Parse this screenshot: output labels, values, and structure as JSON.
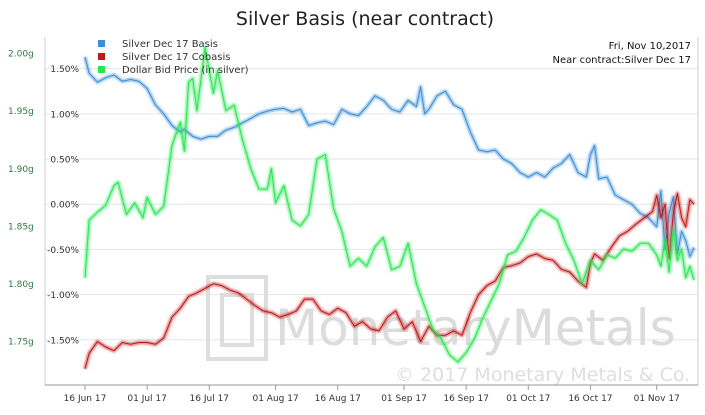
{
  "colors": {
    "basis": "#3c8fd6",
    "cobasis": "#c01818",
    "dollar": "#27e64e",
    "left_axis_text": "#2c7a3f",
    "grid": "#e6e6e6",
    "watermark": "#d9d9d9"
  },
  "info": {
    "date": "Fri, Nov 10,2017",
    "contract": "Near contract:Silver Dec 17"
  },
  "watermark": {
    "brand": "MonetaryMetals",
    "copyright": "© 2017 Monetary Metals & Co."
  },
  "chart_data": {
    "type": "line",
    "title": "Silver Basis (near contract)",
    "x_ticks": [
      "16 Jun 17",
      "01 Jul 17",
      "16 Jul 17",
      "01 Aug 17",
      "16 Aug 17",
      "01 Sep 17",
      "16 Sep 17",
      "01 Oct 17",
      "16 Oct 17",
      "01 Nov 17"
    ],
    "x_range": [
      "2017-06-16",
      "2017-11-10"
    ],
    "right_axis": {
      "ticks": [
        "1.50%",
        "1.00%",
        "0.50%",
        "0.00%",
        "-0.50%",
        "-1.00%",
        "-1.50%"
      ],
      "tick_values": [
        1.5,
        1.0,
        0.5,
        0.0,
        -0.5,
        -1.0,
        -1.5
      ],
      "range": [
        -2.0,
        1.85
      ],
      "unit": "%"
    },
    "left_axis": {
      "ticks": [
        "2.00g",
        "1.95g",
        "1.90g",
        "1.85g",
        "1.80g",
        "1.75g"
      ],
      "tick_values": [
        2.0,
        1.95,
        1.9,
        1.85,
        1.8,
        1.75
      ],
      "range": [
        1.712,
        2.014
      ],
      "unit": "g"
    },
    "legend_position": "top-left",
    "series": [
      {
        "name": "Silver Dec 17 Basis",
        "axis": "right",
        "color_key": "basis",
        "points": [
          [
            "2017-06-16",
            1.63
          ],
          [
            "2017-06-17",
            1.45
          ],
          [
            "2017-06-19",
            1.35
          ],
          [
            "2017-06-21",
            1.4
          ],
          [
            "2017-06-23",
            1.43
          ],
          [
            "2017-06-25",
            1.36
          ],
          [
            "2017-06-27",
            1.38
          ],
          [
            "2017-06-29",
            1.36
          ],
          [
            "2017-07-01",
            1.28
          ],
          [
            "2017-07-03",
            1.1
          ],
          [
            "2017-07-05",
            1.0
          ],
          [
            "2017-07-07",
            0.87
          ],
          [
            "2017-07-09",
            0.8
          ],
          [
            "2017-07-10",
            0.83
          ],
          [
            "2017-07-12",
            0.75
          ],
          [
            "2017-07-14",
            0.72
          ],
          [
            "2017-07-16",
            0.75
          ],
          [
            "2017-07-18",
            0.75
          ],
          [
            "2017-07-20",
            0.82
          ],
          [
            "2017-07-22",
            0.85
          ],
          [
            "2017-07-24",
            0.9
          ],
          [
            "2017-07-26",
            0.95
          ],
          [
            "2017-07-28",
            1.0
          ],
          [
            "2017-07-30",
            1.03
          ],
          [
            "2017-08-01",
            1.05
          ],
          [
            "2017-08-03",
            1.06
          ],
          [
            "2017-08-05",
            1.02
          ],
          [
            "2017-08-07",
            1.05
          ],
          [
            "2017-08-09",
            0.87
          ],
          [
            "2017-08-11",
            0.9
          ],
          [
            "2017-08-13",
            0.92
          ],
          [
            "2017-08-15",
            0.88
          ],
          [
            "2017-08-17",
            1.05
          ],
          [
            "2017-08-19",
            1.0
          ],
          [
            "2017-08-21",
            0.98
          ],
          [
            "2017-08-23",
            1.08
          ],
          [
            "2017-08-25",
            1.2
          ],
          [
            "2017-08-27",
            1.15
          ],
          [
            "2017-08-29",
            1.05
          ],
          [
            "2017-08-31",
            1.02
          ],
          [
            "2017-09-02",
            1.15
          ],
          [
            "2017-09-04",
            1.08
          ],
          [
            "2017-09-05",
            1.3
          ],
          [
            "2017-09-06",
            1.0
          ],
          [
            "2017-09-07",
            1.05
          ],
          [
            "2017-09-09",
            1.2
          ],
          [
            "2017-09-11",
            1.25
          ],
          [
            "2017-09-13",
            1.1
          ],
          [
            "2017-09-15",
            1.05
          ],
          [
            "2017-09-17",
            0.8
          ],
          [
            "2017-09-19",
            0.6
          ],
          [
            "2017-09-21",
            0.58
          ],
          [
            "2017-09-23",
            0.6
          ],
          [
            "2017-09-25",
            0.5
          ],
          [
            "2017-09-27",
            0.45
          ],
          [
            "2017-09-29",
            0.35
          ],
          [
            "2017-10-01",
            0.3
          ],
          [
            "2017-10-03",
            0.35
          ],
          [
            "2017-10-05",
            0.3
          ],
          [
            "2017-10-07",
            0.4
          ],
          [
            "2017-10-09",
            0.45
          ],
          [
            "2017-10-11",
            0.55
          ],
          [
            "2017-10-13",
            0.35
          ],
          [
            "2017-10-15",
            0.3
          ],
          [
            "2017-10-16",
            0.55
          ],
          [
            "2017-10-17",
            0.65
          ],
          [
            "2017-10-18",
            0.28
          ],
          [
            "2017-10-20",
            0.3
          ],
          [
            "2017-10-22",
            0.1
          ],
          [
            "2017-10-24",
            0.05
          ],
          [
            "2017-10-26",
            0.0
          ],
          [
            "2017-10-28",
            -0.1
          ],
          [
            "2017-10-30",
            -0.15
          ],
          [
            "2017-11-01",
            -0.25
          ],
          [
            "2017-11-02",
            0.15
          ],
          [
            "2017-11-03",
            -0.5
          ],
          [
            "2017-11-04",
            -0.1
          ],
          [
            "2017-11-05",
            0.08
          ],
          [
            "2017-11-06",
            -0.55
          ],
          [
            "2017-11-07",
            -0.3
          ],
          [
            "2017-11-08",
            -0.4
          ],
          [
            "2017-11-09",
            -0.58
          ],
          [
            "2017-11-10",
            -0.48
          ]
        ]
      },
      {
        "name": "Silver Dec 17 Cobasis",
        "axis": "right",
        "color_key": "cobasis",
        "points": [
          [
            "2017-06-16",
            -1.82
          ],
          [
            "2017-06-17",
            -1.65
          ],
          [
            "2017-06-19",
            -1.52
          ],
          [
            "2017-06-21",
            -1.58
          ],
          [
            "2017-06-23",
            -1.62
          ],
          [
            "2017-06-25",
            -1.53
          ],
          [
            "2017-06-27",
            -1.55
          ],
          [
            "2017-06-29",
            -1.53
          ],
          [
            "2017-07-01",
            -1.53
          ],
          [
            "2017-07-03",
            -1.55
          ],
          [
            "2017-07-05",
            -1.48
          ],
          [
            "2017-07-07",
            -1.25
          ],
          [
            "2017-07-09",
            -1.15
          ],
          [
            "2017-07-11",
            -1.02
          ],
          [
            "2017-07-13",
            -0.98
          ],
          [
            "2017-07-15",
            -0.93
          ],
          [
            "2017-07-17",
            -0.88
          ],
          [
            "2017-07-19",
            -0.9
          ],
          [
            "2017-07-21",
            -0.95
          ],
          [
            "2017-07-23",
            -0.98
          ],
          [
            "2017-07-25",
            -1.05
          ],
          [
            "2017-07-27",
            -1.12
          ],
          [
            "2017-07-29",
            -1.18
          ],
          [
            "2017-07-31",
            -1.2
          ],
          [
            "2017-08-02",
            -1.25
          ],
          [
            "2017-08-04",
            -1.22
          ],
          [
            "2017-08-06",
            -1.18
          ],
          [
            "2017-08-08",
            -1.05
          ],
          [
            "2017-08-10",
            -1.05
          ],
          [
            "2017-08-12",
            -1.18
          ],
          [
            "2017-08-14",
            -1.22
          ],
          [
            "2017-08-16",
            -1.15
          ],
          [
            "2017-08-18",
            -1.2
          ],
          [
            "2017-08-20",
            -1.35
          ],
          [
            "2017-08-22",
            -1.3
          ],
          [
            "2017-08-24",
            -1.38
          ],
          [
            "2017-08-26",
            -1.4
          ],
          [
            "2017-08-28",
            -1.25
          ],
          [
            "2017-08-30",
            -1.18
          ],
          [
            "2017-09-01",
            -1.38
          ],
          [
            "2017-09-03",
            -1.3
          ],
          [
            "2017-09-05",
            -1.52
          ],
          [
            "2017-09-07",
            -1.35
          ],
          [
            "2017-09-09",
            -1.45
          ],
          [
            "2017-09-11",
            -1.45
          ],
          [
            "2017-09-13",
            -1.4
          ],
          [
            "2017-09-15",
            -1.45
          ],
          [
            "2017-09-17",
            -1.2
          ],
          [
            "2017-09-19",
            -1.0
          ],
          [
            "2017-09-21",
            -0.9
          ],
          [
            "2017-09-23",
            -0.85
          ],
          [
            "2017-09-25",
            -0.7
          ],
          [
            "2017-09-27",
            -0.68
          ],
          [
            "2017-09-29",
            -0.65
          ],
          [
            "2017-10-01",
            -0.58
          ],
          [
            "2017-10-03",
            -0.55
          ],
          [
            "2017-10-05",
            -0.6
          ],
          [
            "2017-10-07",
            -0.62
          ],
          [
            "2017-10-09",
            -0.72
          ],
          [
            "2017-10-11",
            -0.75
          ],
          [
            "2017-10-13",
            -0.85
          ],
          [
            "2017-10-15",
            -0.92
          ],
          [
            "2017-10-16",
            -0.65
          ],
          [
            "2017-10-17",
            -0.55
          ],
          [
            "2017-10-19",
            -0.62
          ],
          [
            "2017-10-21",
            -0.48
          ],
          [
            "2017-10-23",
            -0.35
          ],
          [
            "2017-10-25",
            -0.3
          ],
          [
            "2017-10-27",
            -0.22
          ],
          [
            "2017-10-29",
            -0.15
          ],
          [
            "2017-10-31",
            -0.08
          ],
          [
            "2017-11-01",
            0.1
          ],
          [
            "2017-11-02",
            -0.15
          ],
          [
            "2017-11-03",
            0.0
          ],
          [
            "2017-11-04",
            -0.6
          ],
          [
            "2017-11-05",
            -0.1
          ],
          [
            "2017-11-06",
            0.12
          ],
          [
            "2017-11-07",
            -0.15
          ],
          [
            "2017-11-08",
            -0.25
          ],
          [
            "2017-11-09",
            0.05
          ],
          [
            "2017-11-10",
            0.0
          ]
        ]
      },
      {
        "name": "Dollar Bid Price (in silver)",
        "axis": "left",
        "color_key": "dollar",
        "points": [
          [
            "2017-06-16",
            1.805
          ],
          [
            "2017-06-17",
            1.855
          ],
          [
            "2017-06-19",
            1.862
          ],
          [
            "2017-06-21",
            1.868
          ],
          [
            "2017-06-23",
            1.885
          ],
          [
            "2017-06-24",
            1.888
          ],
          [
            "2017-06-26",
            1.86
          ],
          [
            "2017-06-28",
            1.87
          ],
          [
            "2017-06-30",
            1.857
          ],
          [
            "2017-07-01",
            1.875
          ],
          [
            "2017-07-03",
            1.86
          ],
          [
            "2017-07-05",
            1.867
          ],
          [
            "2017-07-07",
            1.92
          ],
          [
            "2017-07-09",
            1.94
          ],
          [
            "2017-07-10",
            1.915
          ],
          [
            "2017-07-11",
            1.975
          ],
          [
            "2017-07-12",
            1.978
          ],
          [
            "2017-07-13",
            1.95
          ],
          [
            "2017-07-15",
            2.005
          ],
          [
            "2017-07-17",
            1.965
          ],
          [
            "2017-07-18",
            1.985
          ],
          [
            "2017-07-20",
            1.95
          ],
          [
            "2017-07-22",
            1.955
          ],
          [
            "2017-07-24",
            1.925
          ],
          [
            "2017-07-26",
            1.9
          ],
          [
            "2017-07-28",
            1.882
          ],
          [
            "2017-07-30",
            1.882
          ],
          [
            "2017-07-31",
            1.9
          ],
          [
            "2017-08-01",
            1.87
          ],
          [
            "2017-08-03",
            1.885
          ],
          [
            "2017-08-05",
            1.855
          ],
          [
            "2017-08-07",
            1.85
          ],
          [
            "2017-08-09",
            1.86
          ],
          [
            "2017-08-11",
            1.908
          ],
          [
            "2017-08-13",
            1.912
          ],
          [
            "2017-08-15",
            1.865
          ],
          [
            "2017-08-17",
            1.845
          ],
          [
            "2017-08-19",
            1.815
          ],
          [
            "2017-08-21",
            1.822
          ],
          [
            "2017-08-23",
            1.815
          ],
          [
            "2017-08-25",
            1.832
          ],
          [
            "2017-08-27",
            1.84
          ],
          [
            "2017-08-29",
            1.812
          ],
          [
            "2017-08-31",
            1.815
          ],
          [
            "2017-09-02",
            1.835
          ],
          [
            "2017-09-04",
            1.8
          ],
          [
            "2017-09-06",
            1.78
          ],
          [
            "2017-09-08",
            1.76
          ],
          [
            "2017-09-10",
            1.752
          ],
          [
            "2017-09-12",
            1.738
          ],
          [
            "2017-09-14",
            1.732
          ],
          [
            "2017-09-16",
            1.74
          ],
          [
            "2017-09-18",
            1.752
          ],
          [
            "2017-09-20",
            1.77
          ],
          [
            "2017-09-22",
            1.785
          ],
          [
            "2017-09-24",
            1.8
          ],
          [
            "2017-09-26",
            1.825
          ],
          [
            "2017-09-28",
            1.828
          ],
          [
            "2017-09-30",
            1.84
          ],
          [
            "2017-10-02",
            1.855
          ],
          [
            "2017-10-04",
            1.864
          ],
          [
            "2017-10-06",
            1.86
          ],
          [
            "2017-10-08",
            1.855
          ],
          [
            "2017-10-10",
            1.835
          ],
          [
            "2017-10-12",
            1.82
          ],
          [
            "2017-10-14",
            1.8
          ],
          [
            "2017-10-16",
            1.82
          ],
          [
            "2017-10-18",
            1.812
          ],
          [
            "2017-10-20",
            1.825
          ],
          [
            "2017-10-22",
            1.822
          ],
          [
            "2017-10-24",
            1.83
          ],
          [
            "2017-10-26",
            1.828
          ],
          [
            "2017-10-28",
            1.835
          ],
          [
            "2017-10-30",
            1.835
          ],
          [
            "2017-11-01",
            1.825
          ],
          [
            "2017-11-02",
            1.815
          ],
          [
            "2017-11-03",
            1.838
          ],
          [
            "2017-11-04",
            1.81
          ],
          [
            "2017-11-05",
            1.847
          ],
          [
            "2017-11-06",
            1.82
          ],
          [
            "2017-11-07",
            1.83
          ],
          [
            "2017-11-08",
            1.805
          ],
          [
            "2017-11-09",
            1.815
          ],
          [
            "2017-11-10",
            1.803
          ]
        ]
      }
    ]
  }
}
